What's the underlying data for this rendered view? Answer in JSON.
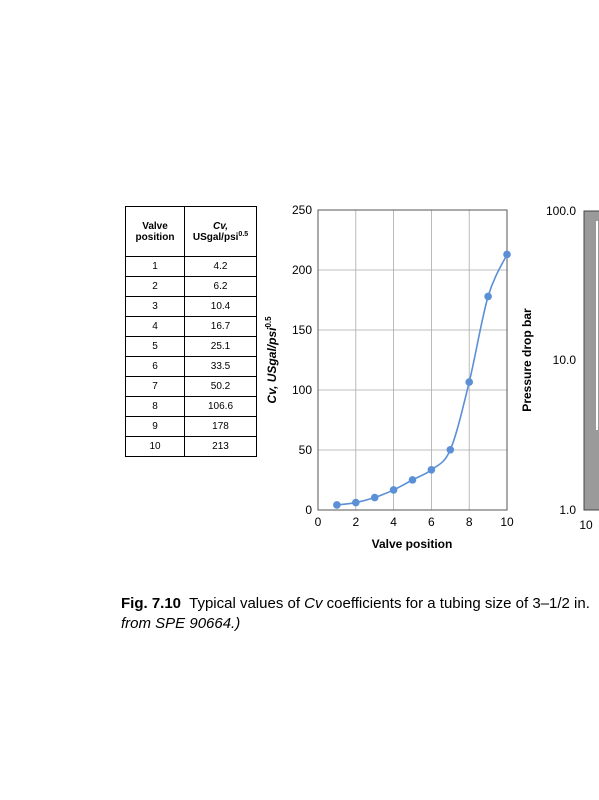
{
  "table": {
    "header": {
      "col1": "Valve position",
      "col2_var": "Cv,",
      "col2_unit": "USgal/psi",
      "col2_exp": "0.5"
    },
    "rows": [
      {
        "position": "1",
        "cv": "4.2"
      },
      {
        "position": "2",
        "cv": "6.2"
      },
      {
        "position": "3",
        "cv": "10.4"
      },
      {
        "position": "4",
        "cv": "16.7"
      },
      {
        "position": "5",
        "cv": "25.1"
      },
      {
        "position": "6",
        "cv": "33.5"
      },
      {
        "position": "7",
        "cv": "50.2"
      },
      {
        "position": "8",
        "cv": "106.6"
      },
      {
        "position": "9",
        "cv": "178"
      },
      {
        "position": "10",
        "cv": "213"
      }
    ]
  },
  "chart_data": [
    {
      "type": "line",
      "xlabel": "Valve position",
      "ylabel": "Cv, USgal/psi",
      "ylabel_exp": "0.5",
      "xlim": [
        0,
        10
      ],
      "ylim": [
        0,
        250
      ],
      "xticks": [
        "0",
        "2",
        "4",
        "6",
        "8",
        "10"
      ],
      "yticks": [
        "0",
        "50",
        "100",
        "150",
        "200",
        "250"
      ],
      "grid": true,
      "color": "#5b8fd6",
      "x": [
        1,
        2,
        3,
        4,
        5,
        6,
        7,
        8,
        9,
        10
      ],
      "y": [
        4.2,
        6.2,
        10.4,
        16.7,
        25.1,
        33.5,
        50.2,
        106.6,
        178,
        213
      ]
    },
    {
      "type": "line",
      "ylabel": "Pressure drop bar",
      "yscale": "log",
      "yticks": [
        "1.0",
        "10.0",
        "100.0"
      ],
      "xticks": [
        "10"
      ]
    }
  ],
  "caption": {
    "fig_label": "Fig. 7.10",
    "text_a": "Typical values of ",
    "cv": "Cv",
    "text_b": " coefficients for a tubing size of 3–1/2 in.",
    "line2": "from SPE 90664.)"
  }
}
